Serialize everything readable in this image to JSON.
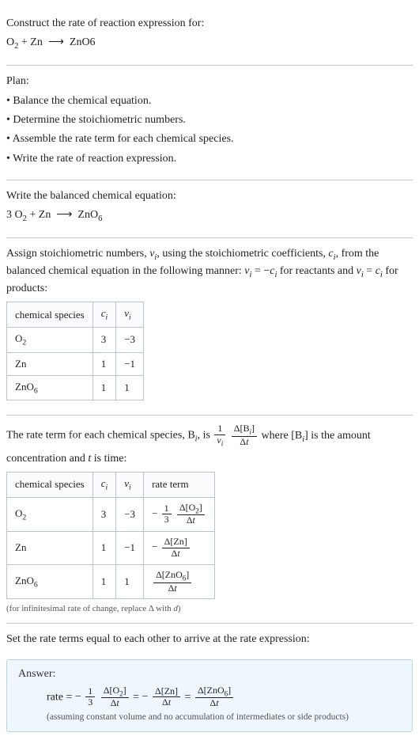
{
  "header": {
    "title": "Construct the rate of reaction expression for:",
    "equation_html": "O<span class='sub'>2</span> + Zn &nbsp;&#10230;&nbsp; ZnO6"
  },
  "plan": {
    "label": "Plan:",
    "items": [
      "Balance the chemical equation.",
      "Determine the stoichiometric numbers.",
      "Assemble the rate term for each chemical species.",
      "Write the rate of reaction expression."
    ]
  },
  "balanced": {
    "label": "Write the balanced chemical equation:",
    "equation_html": "3 O<span class='sub'>2</span> + Zn &nbsp;&#10230;&nbsp; ZnO<span class='sub'>6</span>"
  },
  "stoich": {
    "intro_html": "Assign stoichiometric numbers, <span class='ital'>ν<span class='sub'>i</span></span>, using the stoichiometric coefficients, <span class='ital'>c<span class='sub'>i</span></span>, from the balanced chemical equation in the following manner: <span class='ital'>ν<span class='sub'>i</span></span> = −<span class='ital'>c<span class='sub'>i</span></span> for reactants and <span class='ital'>ν<span class='sub'>i</span></span> = <span class='ital'>c<span class='sub'>i</span></span> for products:",
    "headers": [
      "chemical species",
      "c_i",
      "ν_i"
    ],
    "rows": [
      {
        "species_html": "O<span class='sub'>2</span>",
        "c": "3",
        "v": "−3"
      },
      {
        "species_html": "Zn",
        "c": "1",
        "v": "−1"
      },
      {
        "species_html": "ZnO<span class='sub'>6</span>",
        "c": "1",
        "v": "1"
      }
    ]
  },
  "rateterm": {
    "intro_pre": "The rate term for each chemical species, B",
    "intro_post_html": ", is ",
    "intro_after_frac_html": " where [B<span class='sub ital'>i</span>] is the amount",
    "intro_line2": "concentration and t is time:",
    "headers": [
      "chemical species",
      "c_i",
      "ν_i",
      "rate term"
    ],
    "rows": [
      {
        "species_html": "O<span class='sub'>2</span>",
        "c": "3",
        "v": "−3",
        "term": {
          "neg": true,
          "coef_num": "1",
          "coef_den": "3",
          "d_num_html": "Δ[O<span class='sub'>2</span>]",
          "d_den_html": "Δ<span class='ital'>t</span>"
        }
      },
      {
        "species_html": "Zn",
        "c": "1",
        "v": "−1",
        "term": {
          "neg": true,
          "coef_num": null,
          "coef_den": null,
          "d_num_html": "Δ[Zn]",
          "d_den_html": "Δ<span class='ital'>t</span>"
        }
      },
      {
        "species_html": "ZnO<span class='sub'>6</span>",
        "c": "1",
        "v": "1",
        "term": {
          "neg": false,
          "coef_num": null,
          "coef_den": null,
          "d_num_html": "Δ[ZnO<span class='sub'>6</span>]",
          "d_den_html": "Δ<span class='ital'>t</span>"
        }
      }
    ],
    "note_html": "(for infinitesimal rate of change, replace Δ with <span class='ital'>d</span>)"
  },
  "expression": {
    "intro": "Set the rate terms equal to each other to arrive at the rate expression:"
  },
  "answer": {
    "label": "Answer:",
    "rate_label": "rate",
    "terms": [
      {
        "neg": true,
        "coef_num": "1",
        "coef_den": "3",
        "d_num_html": "Δ[O<span class='sub'>2</span>]",
        "d_den_html": "Δ<span class='ital'>t</span>"
      },
      {
        "neg": true,
        "coef_num": null,
        "coef_den": null,
        "d_num_html": "Δ[Zn]",
        "d_den_html": "Δ<span class='ital'>t</span>"
      },
      {
        "neg": false,
        "coef_num": null,
        "coef_den": null,
        "d_num_html": "Δ[ZnO<span class='sub'>6</span>]",
        "d_den_html": "Δ<span class='ital'>t</span>"
      }
    ],
    "note": "(assuming constant volume and no accumulation of intermediates or side products)"
  },
  "style": {
    "border_color": "#b9c4cc",
    "answer_bg": "#eef7fb",
    "answer_border": "#b8d6e2"
  }
}
